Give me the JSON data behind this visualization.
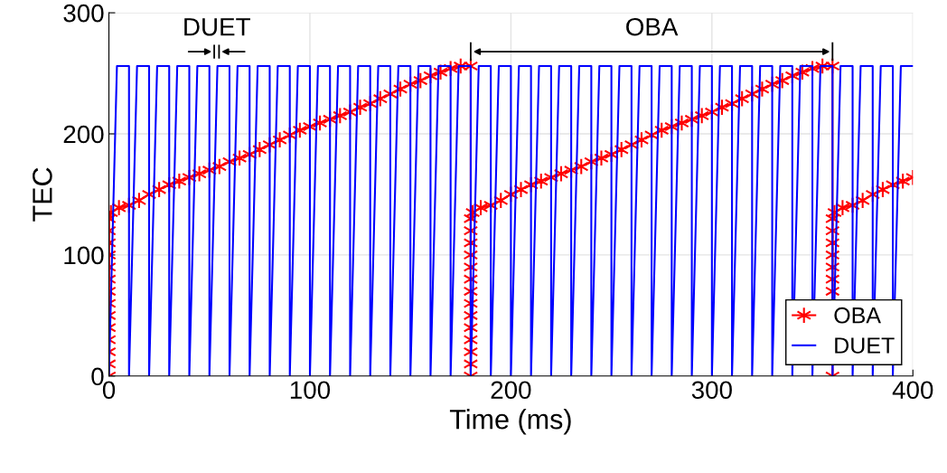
{
  "chart_data": {
    "type": "line",
    "xlabel": "Time (ms)",
    "ylabel": "TEC",
    "xlim": [
      0,
      400
    ],
    "ylim": [
      0,
      300
    ],
    "xticks": [
      0,
      100,
      200,
      300,
      400
    ],
    "yticks": [
      0,
      100,
      200,
      300
    ],
    "grid": true,
    "legend": "bottom right",
    "annotations": [
      "DUET",
      "OBA"
    ],
    "series": [
      {
        "name": "OBA",
        "color": "#ff0000",
        "marker": "cross",
        "line_style": "solid",
        "x": [
          0,
          0,
          0,
          0,
          0,
          0,
          0,
          0,
          0,
          0,
          0,
          0,
          0,
          0,
          1,
          5,
          10,
          15,
          20,
          25,
          30,
          35,
          40,
          45,
          50,
          55,
          60,
          65,
          70,
          75,
          80,
          85,
          90,
          95,
          100,
          105,
          110,
          115,
          120,
          125,
          130,
          135,
          140,
          145,
          150,
          155,
          160,
          165,
          170,
          175,
          180,
          180,
          180,
          180,
          180,
          180,
          180,
          180,
          180,
          180,
          180,
          180,
          180,
          180,
          180,
          181,
          185,
          190,
          195,
          200,
          205,
          210,
          215,
          220,
          225,
          230,
          235,
          240,
          245,
          250,
          255,
          260,
          265,
          270,
          275,
          280,
          285,
          290,
          295,
          300,
          305,
          310,
          315,
          320,
          325,
          330,
          335,
          340,
          345,
          350,
          355,
          360,
          360,
          360,
          360,
          360,
          360,
          360,
          360,
          360,
          361,
          365,
          370,
          375,
          380,
          385,
          390,
          395,
          400
        ],
        "values": [
          0,
          10,
          20,
          30,
          40,
          50,
          60,
          70,
          80,
          90,
          100,
          110,
          120,
          130,
          135,
          139,
          141,
          145,
          150,
          154,
          158,
          161,
          164,
          167,
          170,
          173,
          177,
          180,
          183,
          187,
          191,
          195,
          199,
          203,
          206,
          209,
          212,
          215,
          218,
          222,
          225,
          229,
          233,
          237,
          241,
          244,
          248,
          251,
          254,
          256,
          256,
          0,
          10,
          20,
          30,
          40,
          50,
          60,
          70,
          80,
          90,
          100,
          110,
          120,
          130,
          135,
          139,
          141,
          145,
          150,
          154,
          158,
          161,
          164,
          167,
          170,
          173,
          177,
          180,
          183,
          187,
          191,
          195,
          199,
          203,
          206,
          209,
          212,
          215,
          218,
          222,
          225,
          229,
          233,
          237,
          241,
          244,
          248,
          251,
          254,
          256,
          256,
          0,
          70,
          80,
          90,
          100,
          110,
          120,
          130,
          135,
          139,
          141,
          145,
          150,
          154,
          158,
          161,
          164
        ]
      },
      {
        "name": "DUET",
        "color": "#0000ff",
        "marker": "none",
        "line_style": "solid",
        "x": [
          0,
          4,
          10,
          10,
          14,
          20,
          20,
          24,
          30,
          30,
          34,
          40,
          40,
          44,
          50,
          50,
          54,
          60,
          60,
          64,
          70,
          70,
          74,
          80,
          80,
          84,
          90,
          90,
          94,
          100,
          100,
          104,
          110,
          110,
          114,
          120,
          120,
          124,
          130,
          130,
          134,
          140,
          140,
          144,
          150,
          150,
          154,
          160,
          160,
          164,
          170,
          170,
          174,
          180,
          180,
          184,
          190,
          190,
          194,
          200,
          200,
          204,
          210,
          210,
          214,
          220,
          220,
          224,
          230,
          230,
          234,
          240,
          240,
          244,
          250,
          250,
          254,
          260,
          260,
          264,
          270,
          270,
          274,
          280,
          280,
          284,
          290,
          290,
          294,
          300,
          300,
          304,
          310,
          310,
          314,
          320,
          320,
          324,
          330,
          330,
          334,
          340,
          340,
          344,
          350,
          350,
          354,
          360,
          360,
          364,
          370,
          370,
          374,
          380,
          380,
          384,
          390,
          390,
          394,
          400
        ],
        "values": [
          0,
          256,
          256,
          0,
          256,
          256,
          0,
          256,
          256,
          0,
          256,
          256,
          0,
          256,
          256,
          0,
          256,
          256,
          0,
          256,
          256,
          0,
          256,
          256,
          0,
          256,
          256,
          0,
          256,
          256,
          0,
          256,
          256,
          0,
          256,
          256,
          0,
          256,
          256,
          0,
          256,
          256,
          0,
          256,
          256,
          0,
          256,
          256,
          0,
          256,
          256,
          0,
          256,
          256,
          0,
          256,
          256,
          0,
          256,
          256,
          0,
          256,
          256,
          0,
          256,
          256,
          0,
          256,
          256,
          0,
          256,
          256,
          0,
          256,
          256,
          0,
          256,
          256,
          0,
          256,
          256,
          0,
          256,
          256,
          0,
          256,
          256,
          0,
          256,
          256,
          0,
          256,
          256,
          0,
          256,
          256,
          0,
          256,
          256,
          0,
          256,
          256,
          0,
          256,
          256,
          0,
          256,
          256,
          0,
          256,
          256,
          0,
          256,
          256,
          0,
          256,
          256,
          0,
          256,
          256
        ]
      }
    ]
  }
}
